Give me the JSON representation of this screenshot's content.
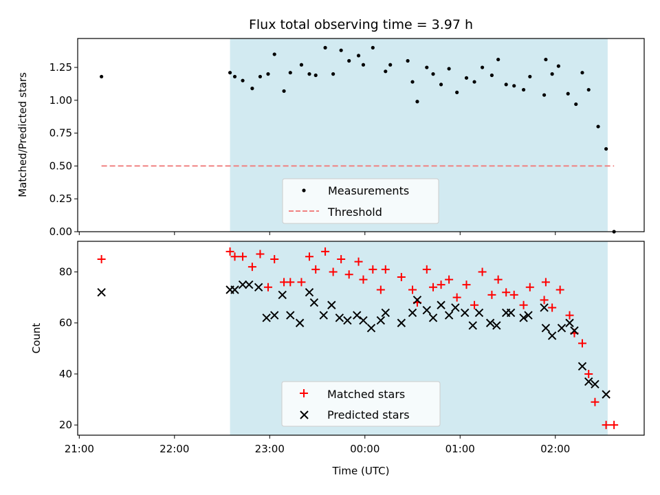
{
  "figure": {
    "title": "Flux total observing time = 3.97 h",
    "shade_color": "#add8e6",
    "time_ticks": [
      "21:00",
      "22:00",
      "23:00",
      "00:00",
      "01:00",
      "02:00"
    ],
    "xlabel": "Time (UTC)"
  },
  "chart_data": [
    {
      "type": "scatter",
      "title": "Flux total observing time = 3.97 h",
      "ylabel": "Matched/Predicted stars",
      "xlabel": "",
      "ylim": [
        0,
        1.47
      ],
      "yticks": [
        "0.00",
        "0.25",
        "0.50",
        "0.75",
        "1.00",
        "1.25"
      ],
      "xlim": [
        "20:59",
        "02:56"
      ],
      "observing_window": [
        "22:35",
        "02:33"
      ],
      "legend_placement": "lower center",
      "series": [
        {
          "name": "Measurements",
          "color": "#000000",
          "marker": "dot",
          "points": [
            [
              "21:14",
              1.18
            ],
            [
              "22:35",
              1.21
            ],
            [
              "22:38",
              1.18
            ],
            [
              "22:43",
              1.15
            ],
            [
              "22:49",
              1.09
            ],
            [
              "22:54",
              1.18
            ],
            [
              "22:59",
              1.2
            ],
            [
              "23:03",
              1.35
            ],
            [
              "23:09",
              1.07
            ],
            [
              "23:13",
              1.21
            ],
            [
              "23:20",
              1.27
            ],
            [
              "23:25",
              1.2
            ],
            [
              "23:29",
              1.19
            ],
            [
              "23:35",
              1.4
            ],
            [
              "23:40",
              1.2
            ],
            [
              "23:45",
              1.38
            ],
            [
              "23:50",
              1.3
            ],
            [
              "23:56",
              1.34
            ],
            [
              "23:59",
              1.27
            ],
            [
              "00:05",
              1.4
            ],
            [
              "00:13",
              1.22
            ],
            [
              "00:16",
              1.27
            ],
            [
              "00:27",
              1.3
            ],
            [
              "00:30",
              1.14
            ],
            [
              "00:33",
              0.99
            ],
            [
              "00:39",
              1.25
            ],
            [
              "00:43",
              1.2
            ],
            [
              "00:48",
              1.12
            ],
            [
              "00:53",
              1.24
            ],
            [
              "00:58",
              1.06
            ],
            [
              "01:04",
              1.17
            ],
            [
              "01:09",
              1.14
            ],
            [
              "01:14",
              1.25
            ],
            [
              "01:20",
              1.19
            ],
            [
              "01:24",
              1.31
            ],
            [
              "01:29",
              1.12
            ],
            [
              "01:34",
              1.11
            ],
            [
              "01:40",
              1.08
            ],
            [
              "01:44",
              1.18
            ],
            [
              "01:53",
              1.04
            ],
            [
              "01:54",
              1.31
            ],
            [
              "01:58",
              1.2
            ],
            [
              "02:02",
              1.26
            ],
            [
              "02:08",
              1.05
            ],
            [
              "02:13",
              0.97
            ],
            [
              "02:17",
              1.21
            ],
            [
              "02:21",
              1.08
            ],
            [
              "02:27",
              0.8
            ],
            [
              "02:32",
              0.63
            ],
            [
              "02:37",
              0.0
            ]
          ]
        },
        {
          "name": "Threshold",
          "color": "#f08080",
          "style": "dashed",
          "points": [
            [
              "21:14",
              0.5
            ],
            [
              "02:37",
              0.5
            ]
          ]
        }
      ]
    },
    {
      "type": "scatter",
      "ylabel": "Count",
      "xlabel": "Time (UTC)",
      "ylim": [
        16,
        92
      ],
      "yticks": [
        "20",
        "40",
        "60",
        "80"
      ],
      "xlim": [
        "20:59",
        "02:56"
      ],
      "observing_window": [
        "22:35",
        "02:33"
      ],
      "legend_placement": "lower center",
      "series": [
        {
          "name": "Matched stars",
          "color": "#ff0000",
          "marker": "plus",
          "points": [
            [
              "21:14",
              85
            ],
            [
              "22:35",
              88
            ],
            [
              "22:38",
              86
            ],
            [
              "22:43",
              86
            ],
            [
              "22:49",
              82
            ],
            [
              "22:54",
              87
            ],
            [
              "22:59",
              74
            ],
            [
              "23:03",
              85
            ],
            [
              "23:09",
              76
            ],
            [
              "23:13",
              76
            ],
            [
              "23:20",
              76
            ],
            [
              "23:25",
              86
            ],
            [
              "23:29",
              81
            ],
            [
              "23:35",
              88
            ],
            [
              "23:40",
              80
            ],
            [
              "23:45",
              85
            ],
            [
              "23:50",
              79
            ],
            [
              "23:56",
              84
            ],
            [
              "23:59",
              77
            ],
            [
              "00:05",
              81
            ],
            [
              "00:10",
              73
            ],
            [
              "00:13",
              81
            ],
            [
              "00:23",
              78
            ],
            [
              "00:30",
              73
            ],
            [
              "00:33",
              68
            ],
            [
              "00:39",
              81
            ],
            [
              "00:43",
              74
            ],
            [
              "00:48",
              75
            ],
            [
              "00:53",
              77
            ],
            [
              "00:58",
              70
            ],
            [
              "01:04",
              75
            ],
            [
              "01:09",
              67
            ],
            [
              "01:14",
              80
            ],
            [
              "01:20",
              71
            ],
            [
              "01:24",
              77
            ],
            [
              "01:29",
              72
            ],
            [
              "01:34",
              71
            ],
            [
              "01:40",
              67
            ],
            [
              "01:44",
              74
            ],
            [
              "01:53",
              69
            ],
            [
              "01:54",
              76
            ],
            [
              "01:58",
              66
            ],
            [
              "02:03",
              73
            ],
            [
              "02:09",
              63
            ],
            [
              "02:12",
              56
            ],
            [
              "02:17",
              52
            ],
            [
              "02:21",
              40
            ],
            [
              "02:25",
              29
            ],
            [
              "02:32",
              20
            ],
            [
              "02:37",
              20
            ]
          ]
        },
        {
          "name": "Predicted stars",
          "color": "#000000",
          "marker": "x",
          "points": [
            [
              "21:14",
              72
            ],
            [
              "22:35",
              73
            ],
            [
              "22:38",
              73
            ],
            [
              "22:43",
              75
            ],
            [
              "22:47",
              75
            ],
            [
              "22:53",
              74
            ],
            [
              "22:58",
              62
            ],
            [
              "23:03",
              63
            ],
            [
              "23:08",
              71
            ],
            [
              "23:13",
              63
            ],
            [
              "23:19",
              60
            ],
            [
              "23:25",
              72
            ],
            [
              "23:28",
              68
            ],
            [
              "23:34",
              63
            ],
            [
              "23:39",
              67
            ],
            [
              "23:44",
              62
            ],
            [
              "23:49",
              61
            ],
            [
              "23:55",
              63
            ],
            [
              "23:59",
              61
            ],
            [
              "00:04",
              58
            ],
            [
              "00:10",
              61
            ],
            [
              "00:13",
              64
            ],
            [
              "00:23",
              60
            ],
            [
              "00:30",
              64
            ],
            [
              "00:33",
              69
            ],
            [
              "00:39",
              65
            ],
            [
              "00:43",
              62
            ],
            [
              "00:48",
              67
            ],
            [
              "00:53",
              63
            ],
            [
              "00:57",
              66
            ],
            [
              "01:03",
              64
            ],
            [
              "01:08",
              59
            ],
            [
              "01:12",
              64
            ],
            [
              "01:19",
              60
            ],
            [
              "01:23",
              59
            ],
            [
              "01:29",
              64
            ],
            [
              "01:32",
              64
            ],
            [
              "01:40",
              62
            ],
            [
              "01:43",
              63
            ],
            [
              "01:53",
              66
            ],
            [
              "01:54",
              58
            ],
            [
              "01:58",
              55
            ],
            [
              "02:04",
              58
            ],
            [
              "02:09",
              60
            ],
            [
              "02:12",
              57
            ],
            [
              "02:17",
              43
            ],
            [
              "02:21",
              37
            ],
            [
              "02:25",
              36
            ],
            [
              "02:32",
              32
            ]
          ]
        }
      ]
    }
  ]
}
